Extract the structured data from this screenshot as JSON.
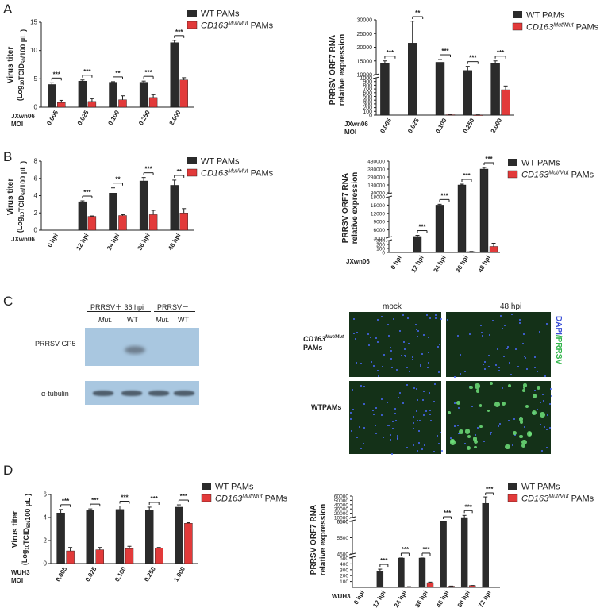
{
  "panels": {
    "a": "A",
    "b": "B",
    "c": "C",
    "d": "D"
  },
  "legend": {
    "wt": "WT PAMs",
    "mut_prefix": "CD163",
    "mut_sup": "Mut/Mut",
    "mut_suffix": " PAMs"
  },
  "colors": {
    "wt": "#2b2b2b",
    "mut": "#e23a3a"
  },
  "virus_ylabel": {
    "l1": "Virus titer",
    "l2": "(Log",
    "l2_sub": "10",
    "l2_b": "TCID",
    "l2_sub2": "50",
    "l2_c": "/100 μL )"
  },
  "rna_ylabel": {
    "l1": "PRRSV ORF7 RNA",
    "l2": "relative expression"
  },
  "chart_data": [
    {
      "id": "A-left",
      "type": "bar",
      "row_labels": [
        "JXwn06",
        "MOI"
      ],
      "categories": [
        "0.005",
        "0.025",
        "0.100",
        "0.250",
        "2.000"
      ],
      "yticks": [
        "0",
        "5",
        "10",
        "15"
      ],
      "ylim": [
        0,
        15
      ],
      "series": [
        {
          "name": "WT PAMs",
          "values": [
            4.0,
            4.6,
            4.4,
            4.4,
            11.4
          ],
          "err": [
            0.3,
            0.2,
            0.1,
            0.2,
            0.4
          ]
        },
        {
          "name": "CD163 Mut/Mut PAMs",
          "values": [
            0.8,
            1.0,
            1.3,
            1.7,
            4.8
          ],
          "err": [
            0.4,
            0.5,
            0.7,
            0.5,
            0.4
          ]
        }
      ],
      "sig": [
        "***",
        "***",
        "**",
        "***",
        "***"
      ]
    },
    {
      "id": "A-right",
      "type": "bar",
      "row_labels": [
        "JXwn06",
        "MOI"
      ],
      "categories": [
        "0.005",
        "0.025",
        "0.100",
        "0.250",
        "2.000"
      ],
      "upper_yticks": [
        "10000",
        "15000",
        "20000",
        "25000",
        "30000"
      ],
      "lower_yticks": [
        "0",
        "100",
        "200",
        "300",
        "400",
        "500",
        "600",
        "700",
        "800",
        "900",
        "1000"
      ],
      "series": [
        {
          "name": "WT PAMs",
          "values": [
            14000,
            21500,
            14500,
            11500,
            14000
          ],
          "err": [
            1000,
            8000,
            1000,
            1500,
            1000
          ]
        },
        {
          "name": "CD163 Mut/Mut PAMs",
          "values": [
            0,
            0,
            10,
            5,
            680
          ],
          "err": [
            0,
            0,
            5,
            3,
            100
          ]
        }
      ],
      "sig": [
        "***",
        "**",
        "***",
        "***",
        "***"
      ]
    },
    {
      "id": "B-left",
      "type": "bar",
      "row_labels": [
        "JXwn06"
      ],
      "categories": [
        "0 hpi",
        "12 hpi",
        "24 hpi",
        "36 hpi",
        "48 hpi"
      ],
      "yticks": [
        "0",
        "2",
        "4",
        "6",
        "8"
      ],
      "ylim": [
        0,
        8
      ],
      "series": [
        {
          "name": "WT PAMs",
          "values": [
            0,
            3.3,
            4.3,
            5.7,
            5.2
          ],
          "err": [
            0,
            0.1,
            0.6,
            0.4,
            0.6
          ]
        },
        {
          "name": "CD163 Mut/Mut PAMs",
          "values": [
            0,
            1.6,
            1.7,
            1.8,
            2.0
          ],
          "err": [
            0,
            0.05,
            0.1,
            0.5,
            0.5
          ]
        }
      ],
      "sig": [
        "",
        "***",
        "**",
        "***",
        "**"
      ]
    },
    {
      "id": "B-right",
      "type": "bar",
      "row_labels": [
        "JXwn06"
      ],
      "categories": [
        "0 hpi",
        "12 hpi",
        "24 hpi",
        "36 hpi",
        "48 hpi"
      ],
      "top_yticks": [
        "80000",
        "180000",
        "280000",
        "380000",
        "480000"
      ],
      "mid_yticks": [
        "3000",
        "6000",
        "9000",
        "12000",
        "15000",
        "18000"
      ],
      "low_yticks": [
        "0",
        "100",
        "200",
        "300"
      ],
      "series": [
        {
          "name": "WT PAMs",
          "values": [
            0,
            3600,
            15000,
            180000,
            380000
          ],
          "err": [
            0,
            400,
            300,
            10000,
            20000
          ]
        },
        {
          "name": "CD163 Mut/Mut PAMs",
          "values": [
            0,
            0,
            0,
            20,
            150
          ],
          "err": [
            0,
            0,
            0,
            5,
            80
          ]
        }
      ],
      "sig": [
        "",
        "***",
        "***",
        "***",
        "***"
      ]
    },
    {
      "id": "D-left",
      "type": "bar",
      "row_labels": [
        "WUH3",
        "MOI"
      ],
      "categories": [
        "0.005",
        "0.025",
        "0.100",
        "0.250",
        "1.000"
      ],
      "yticks": [
        "0",
        "2",
        "4",
        "6"
      ],
      "ylim": [
        0,
        6
      ],
      "series": [
        {
          "name": "WT PAMs",
          "values": [
            4.4,
            4.6,
            4.7,
            4.6,
            4.9
          ],
          "err": [
            0.3,
            0.15,
            0.3,
            0.3,
            0.2
          ]
        },
        {
          "name": "CD163 Mut/Mut PAMs",
          "values": [
            1.1,
            1.2,
            1.3,
            1.35,
            3.5
          ],
          "err": [
            0.3,
            0.2,
            0.2,
            0.05,
            0.05
          ]
        }
      ],
      "sig": [
        "***",
        "***",
        "***",
        "***",
        "***"
      ]
    },
    {
      "id": "D-right",
      "type": "bar",
      "row_labels": [
        "WUH3"
      ],
      "categories": [
        "0 hpi",
        "12 hpi",
        "24 hpi",
        "36 hpi",
        "48 hpi",
        "60 hpi",
        "72 hpi"
      ],
      "upper_yticks": [
        "6500",
        "10000",
        "20000",
        "30000",
        "40000",
        "50000",
        "60000"
      ],
      "mid_yticks": [
        "4500",
        "5500",
        "6500"
      ],
      "low_yticks": [
        "100",
        "200",
        "300",
        "400",
        "500"
      ],
      "series": [
        {
          "name": "WT PAMs",
          "values": [
            0,
            280,
            500,
            500,
            6500,
            10000,
            43000
          ],
          "err": [
            0,
            30,
            30,
            30,
            0,
            5000,
            15000
          ]
        },
        {
          "name": "CD163 Mut/Mut PAMs",
          "values": [
            0,
            0,
            10,
            80,
            20,
            30,
            0
          ],
          "err": [
            0,
            0,
            2,
            10,
            2,
            2,
            0
          ]
        }
      ],
      "sig": [
        "",
        "***",
        "***",
        "***",
        "***",
        "***",
        "***"
      ]
    }
  ],
  "blot": {
    "header_pos": "PRRSV＋  36 hpi",
    "header_neg": "PRRSV－",
    "lanes": [
      "Mut.",
      "WT",
      "Mut.",
      "WT"
    ],
    "rows": [
      "PRRSV GP5",
      "α-tubulin"
    ]
  },
  "micro": {
    "cols": [
      "mock",
      "48 hpi"
    ],
    "row1_a": "CD163",
    "row1_sup": "Mut/Mut",
    "row1_b": "PAMs",
    "row2": "WTPAMs",
    "stain_a": "DAPI",
    "stain_b": "/PRRSV"
  }
}
